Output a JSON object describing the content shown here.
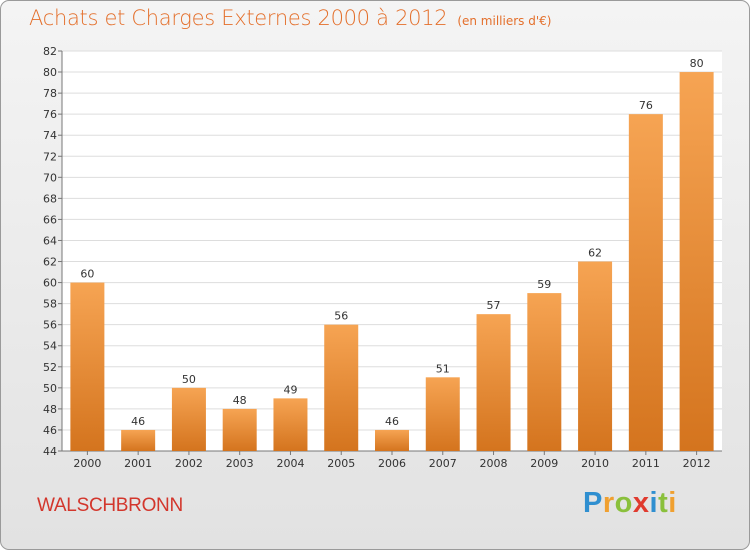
{
  "header": {
    "title": "Achats et Charges Externes 2000 à 2012",
    "unit": "(en milliers d'€)"
  },
  "footer": {
    "commune": "WALSCHBRONN",
    "logo": [
      "P",
      "r",
      "o",
      "x",
      "i",
      "t",
      "i"
    ]
  },
  "colors": {
    "title": "#e46f2b",
    "bar_top": "#f6a453",
    "bar_bottom": "#d4741e",
    "commune": "#d3362c"
  },
  "chart_data": {
    "type": "bar",
    "title": "Achats et Charges Externes 2000 à 2012",
    "subtitle": "(en milliers d'€)",
    "xlabel": "",
    "ylabel": "",
    "categories": [
      "2000",
      "2001",
      "2002",
      "2003",
      "2004",
      "2005",
      "2006",
      "2007",
      "2008",
      "2009",
      "2010",
      "2011",
      "2012"
    ],
    "values": [
      60,
      46,
      50,
      48,
      49,
      56,
      46,
      51,
      57,
      59,
      62,
      76,
      80
    ],
    "data_labels": [
      "60",
      "46",
      "50",
      "48",
      "49",
      "56",
      "46",
      "51",
      "57",
      "59",
      "62",
      "76",
      "80"
    ],
    "ylim": [
      44,
      82
    ],
    "yticks": [
      44,
      46,
      48,
      50,
      52,
      54,
      56,
      58,
      60,
      62,
      64,
      66,
      68,
      70,
      72,
      74,
      76,
      78,
      80,
      82
    ],
    "grid": true,
    "legend": "none"
  }
}
